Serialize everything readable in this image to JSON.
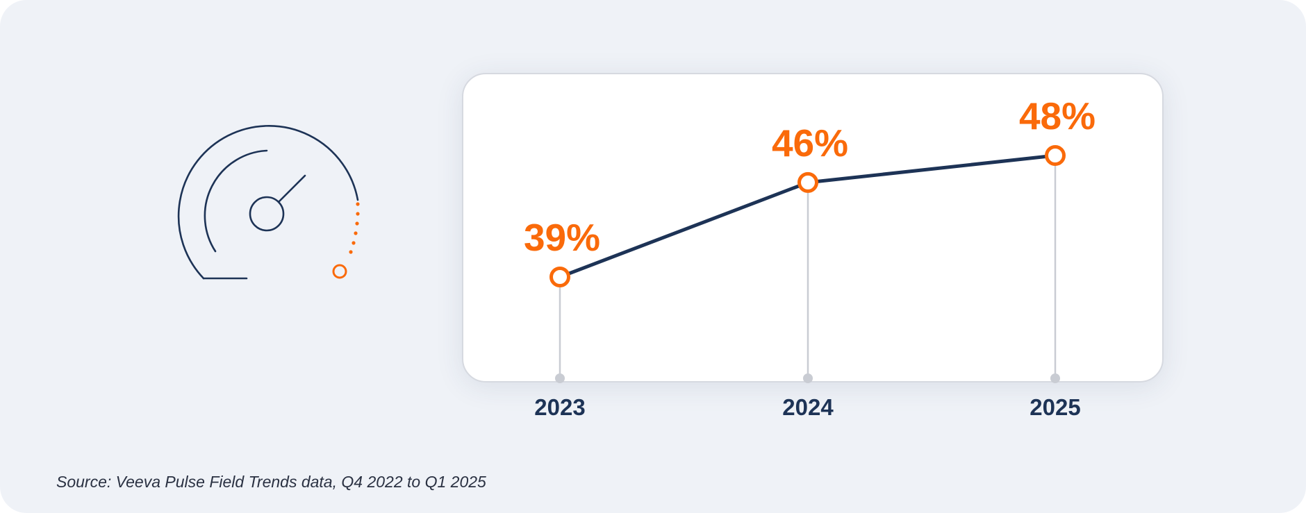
{
  "chart_data": {
    "type": "line",
    "title": "",
    "xlabel": "",
    "ylabel": "",
    "categories": [
      "2023",
      "2024",
      "2025"
    ],
    "values": [
      39,
      46,
      48
    ],
    "value_labels": [
      "39%",
      "46%",
      "48%"
    ],
    "unit": "%",
    "ylim": [
      30,
      50
    ],
    "grid": false,
    "legend": "none",
    "colors": {
      "line": "#1d3356",
      "markers": "#fa6a0a",
      "value_labels": "#fa6a0a",
      "year_labels": "#1d3356",
      "drop_lines": "#c9ccd3"
    }
  },
  "icon": "speedometer-icon",
  "source": "Source: Veeva Pulse Field Trends data, Q4 2022 to Q1 2025"
}
